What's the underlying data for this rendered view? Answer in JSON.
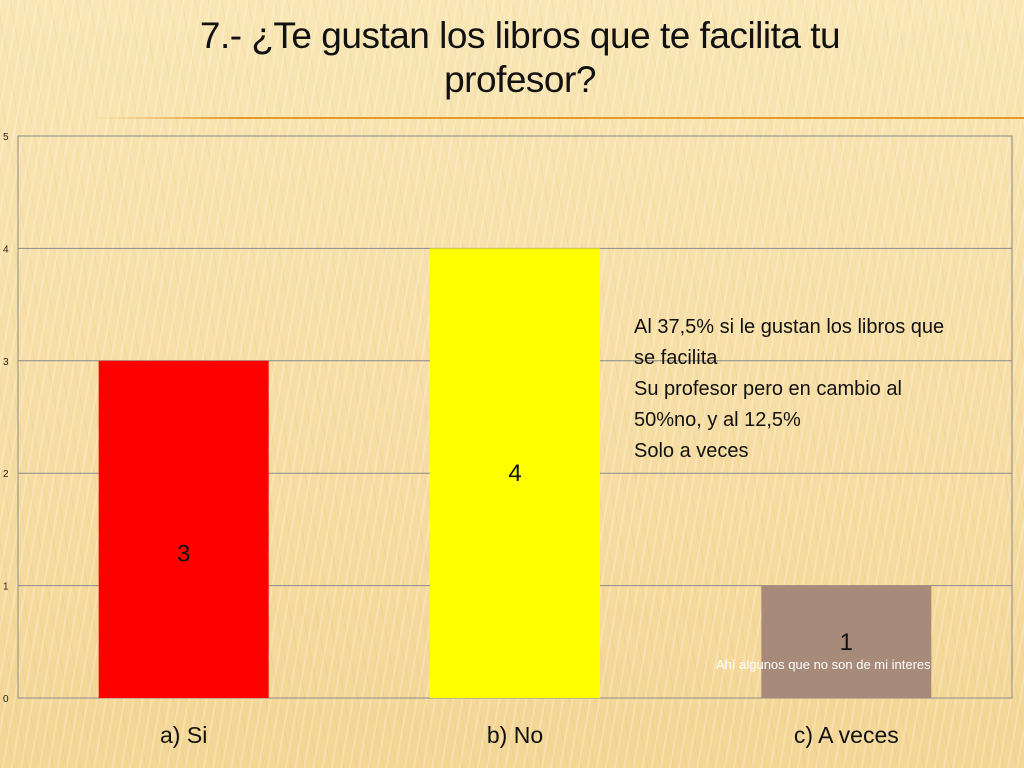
{
  "slide": {
    "title_line1": "7.- ¿Te gustan los libros que te facilita tu",
    "title_line2": "profesor?"
  },
  "chart_data": {
    "type": "bar",
    "categories": [
      "a) Si",
      "b) No",
      "c) A veces"
    ],
    "values": [
      3,
      4,
      1
    ],
    "data_labels": [
      "3",
      "4",
      "1"
    ],
    "colors": [
      "#ff0000",
      "#ffff00",
      "#a78a79"
    ],
    "ylim": [
      0,
      5
    ],
    "yticks": [
      0,
      1,
      2,
      3,
      4,
      5
    ],
    "ytick_labels": [
      "0",
      "1",
      "2",
      "3",
      "4",
      "5"
    ],
    "grid": true,
    "legend": "none",
    "gridline_color": "#8a8a8a"
  },
  "annotations": {
    "main_lines": [
      "Al 37,5% si le gustan los libros que",
      "se facilita",
      "Su profesor pero en cambio al",
      "50%no, y al 12,5%",
      "Solo a veces"
    ],
    "small": "Ahí algunos que no son de mi interes"
  }
}
